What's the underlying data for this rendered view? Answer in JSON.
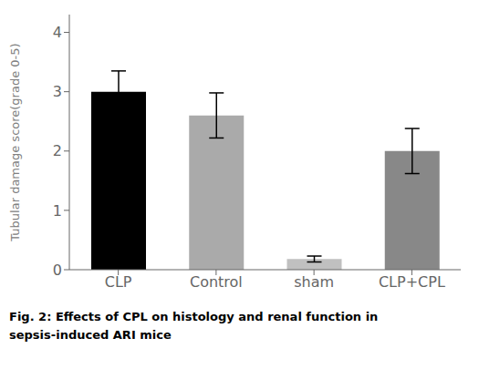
{
  "chart_data": {
    "type": "bar",
    "categories": [
      "CLP",
      "Control",
      "sham",
      "CLP+CPL"
    ],
    "values": [
      3.0,
      2.6,
      0.18,
      2.0
    ],
    "errors": [
      0.35,
      0.38,
      0.05,
      0.38
    ],
    "colors": [
      "#000000",
      "#aaaaaa",
      "#c0c0c0",
      "#888888"
    ],
    "ylabel": "Tubular damage score(grade 0-5)",
    "ylim": [
      0,
      4.3
    ],
    "yticks": [
      0,
      1,
      2,
      3,
      4
    ],
    "grid": false,
    "annotations": [
      "Fig. 2: Effects of CPL on histology and renal function in",
      "sepsis-induced ARI mice"
    ]
  }
}
